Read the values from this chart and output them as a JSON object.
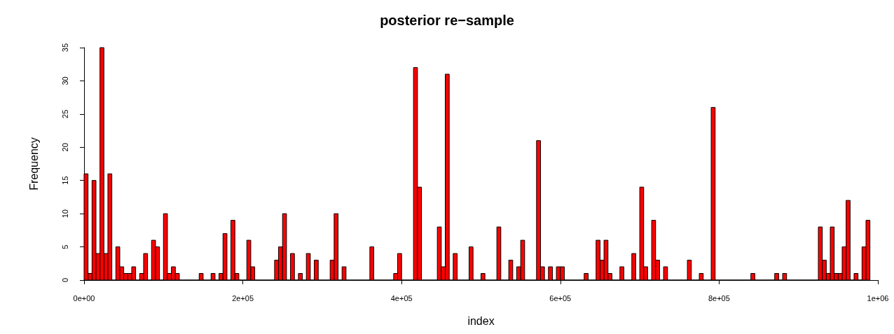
{
  "chart_data": {
    "type": "histogram",
    "title": "posterior re−sample",
    "xlabel": "index",
    "ylabel": "Frequency",
    "color": "#ff0000",
    "bins": [
      0,
      5000,
      10000,
      15000,
      20000,
      25000,
      30000,
      35000,
      40000,
      45000,
      50000,
      55000,
      60000,
      65000,
      70000,
      75000,
      80000,
      85000,
      90000,
      95000,
      100000,
      105000,
      110000,
      115000,
      120000,
      125000,
      130000,
      135000,
      140000,
      145000,
      150000,
      155000,
      160000,
      165000,
      170000,
      175000,
      180000,
      185000,
      190000,
      195000,
      200000,
      205000,
      210000,
      215000,
      220000,
      225000,
      230000,
      235000,
      240000,
      245000,
      250000,
      255000,
      260000,
      265000,
      270000,
      275000,
      280000,
      285000,
      290000,
      295000,
      300000,
      305000,
      310000,
      315000,
      320000,
      325000,
      330000,
      335000,
      340000,
      345000,
      350000,
      355000,
      360000,
      365000,
      370000,
      375000,
      380000,
      385000,
      390000,
      395000,
      400000,
      405000,
      410000,
      415000,
      420000,
      425000,
      430000,
      435000,
      440000,
      445000,
      450000,
      455000,
      460000,
      465000,
      470000,
      475000,
      480000,
      485000,
      490000,
      495000,
      500000,
      505000,
      510000,
      515000,
      520000,
      525000,
      530000,
      535000,
      540000,
      545000,
      550000,
      555000,
      560000,
      565000,
      570000,
      575000,
      580000,
      585000,
      590000,
      595000,
      600000,
      605000,
      610000,
      615000,
      620000,
      625000,
      630000,
      635000,
      640000,
      645000,
      650000,
      655000,
      660000,
      665000,
      670000,
      675000,
      680000,
      685000,
      690000,
      695000,
      700000,
      705000,
      710000,
      715000,
      720000,
      725000,
      730000,
      735000,
      740000,
      745000,
      750000,
      755000,
      760000,
      765000,
      770000,
      775000,
      780000,
      785000,
      790000,
      795000,
      800000,
      805000,
      810000,
      815000,
      820000,
      825000,
      830000,
      835000,
      840000,
      845000,
      850000,
      855000,
      860000,
      865000,
      870000,
      875000,
      880000,
      885000,
      890000,
      895000,
      900000,
      905000,
      910000,
      915000,
      920000,
      925000,
      930000,
      935000,
      940000,
      945000,
      950000,
      955000,
      960000,
      965000,
      970000,
      975000,
      980000,
      985000,
      990000
    ],
    "values": [
      16,
      1,
      15,
      4,
      35,
      4,
      16,
      0,
      5,
      2,
      1,
      1,
      2,
      0,
      1,
      4,
      0,
      6,
      5,
      0,
      10,
      1,
      2,
      1,
      0,
      0,
      0,
      0,
      0,
      1,
      0,
      0,
      1,
      0,
      1,
      7,
      0,
      9,
      1,
      0,
      0,
      6,
      2,
      0,
      0,
      0,
      0,
      0,
      3,
      5,
      10,
      0,
      4,
      0,
      1,
      0,
      4,
      0,
      3,
      0,
      0,
      0,
      3,
      10,
      0,
      2,
      0,
      0,
      0,
      0,
      0,
      0,
      5,
      0,
      0,
      0,
      0,
      0,
      1,
      4,
      0,
      0,
      0,
      32,
      14,
      0,
      0,
      0,
      0,
      8,
      2,
      31,
      0,
      4,
      0,
      0,
      0,
      5,
      0,
      0,
      1,
      0,
      0,
      0,
      8,
      0,
      0,
      3,
      0,
      2,
      6,
      0,
      0,
      0,
      21,
      2,
      0,
      2,
      0,
      2,
      2,
      0,
      0,
      0,
      0,
      0,
      1,
      0,
      0,
      6,
      3,
      6,
      1,
      0,
      0,
      2,
      0,
      0,
      4,
      0,
      14,
      2,
      0,
      9,
      3,
      0,
      2,
      0,
      0,
      0,
      0,
      0,
      3,
      0,
      0,
      1,
      0,
      0,
      26,
      0,
      0,
      0,
      0,
      0,
      0,
      0,
      0,
      0,
      1,
      0,
      0,
      0,
      0,
      0,
      1,
      0,
      1,
      0,
      0,
      0,
      0,
      0,
      0,
      0,
      0,
      8,
      3,
      1,
      8,
      1,
      1,
      5,
      12,
      0,
      1,
      0,
      5,
      9
    ],
    "xlim": [
      0,
      1000000
    ],
    "xticks": [
      {
        "value": 0,
        "label": "0e+00"
      },
      {
        "value": 200000,
        "label": "2e+05"
      },
      {
        "value": 400000,
        "label": "4e+05"
      },
      {
        "value": 600000,
        "label": "6e+05"
      },
      {
        "value": 800000,
        "label": "8e+05"
      },
      {
        "value": 1000000,
        "label": "1e+06"
      }
    ],
    "ylim": [
      0,
      35
    ],
    "yticks": [
      0,
      5,
      10,
      15,
      20,
      25,
      30,
      35
    ]
  }
}
